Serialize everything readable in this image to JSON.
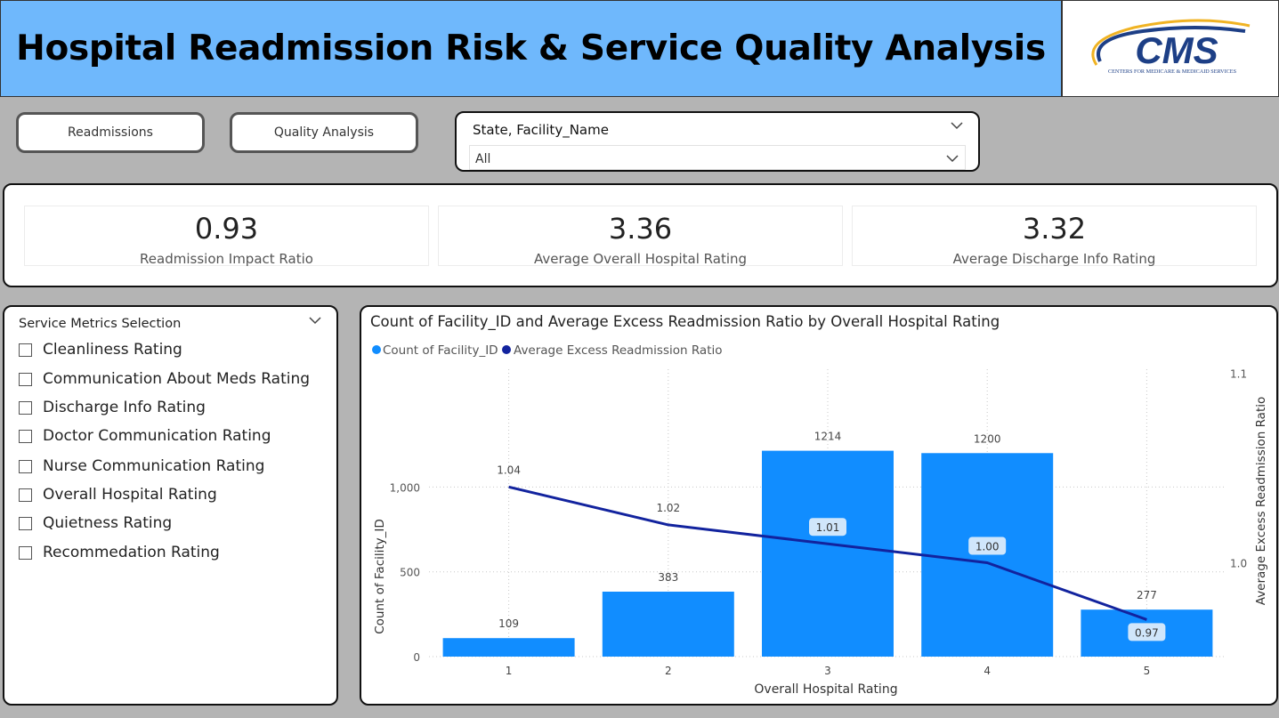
{
  "header": {
    "title": "Hospital Readmission Risk & Service Quality Analysis",
    "logo_text": "CMS",
    "logo_subtext": "CENTERS FOR MEDICARE & MEDICAID SERVICES",
    "logo_colors": {
      "navy": "#1d3f86",
      "gold": "#f0b323"
    }
  },
  "nav": {
    "readmissions_label": "Readmissions",
    "quality_label": "Quality Analysis"
  },
  "slicer": {
    "title": "State, Facility_Name",
    "value": "All"
  },
  "kpis": [
    {
      "value": "0.93",
      "label": "Readmission Impact Ratio"
    },
    {
      "value": "3.36",
      "label": "Average Overall Hospital Rating"
    },
    {
      "value": "3.32",
      "label": "Average Discharge Info Rating"
    }
  ],
  "metrics": {
    "title": "Service Metrics Selection",
    "items": [
      "Cleanliness Rating",
      "Communication About Meds Rating",
      "Discharge Info Rating",
      "Doctor Communication Rating",
      "Nurse Communication Rating",
      "Overall Hospital Rating",
      "Quietness Rating",
      "Recommedation Rating"
    ]
  },
  "colors": {
    "bar": "#118dff",
    "line": "#12239e",
    "label_bg": "#d0e6fb"
  },
  "chart_data": {
    "type": "bar",
    "title": "Count of Facility_ID and Average Excess Readmission Ratio by Overall Hospital Rating",
    "xlabel": "Overall Hospital Rating",
    "ylabel": "Count of Facility_ID",
    "y2label": "Average Excess Readmission Ratio",
    "categories": [
      "1",
      "2",
      "3",
      "4",
      "5"
    ],
    "series": [
      {
        "name": "Count of Facility_ID",
        "type": "bar",
        "values": [
          109,
          383,
          1214,
          1200,
          277
        ],
        "labels": [
          "109",
          "383",
          "1214",
          "1200",
          "277"
        ]
      },
      {
        "name": "Average Excess Readmission Ratio",
        "type": "line",
        "axis": "right",
        "values": [
          1.04,
          1.02,
          1.01,
          1.0,
          0.97
        ],
        "labels": [
          "1.04",
          "1.02",
          "1.01",
          "1.00",
          "0.97"
        ]
      }
    ],
    "ylim": [
      0,
      1250
    ],
    "yticks": [
      "0",
      "500",
      "1,000"
    ],
    "y2lim": [
      0.96,
      1.1
    ],
    "y2ticks": [
      "1.0",
      "1.1"
    ],
    "legend": "top-left",
    "grid": true
  }
}
